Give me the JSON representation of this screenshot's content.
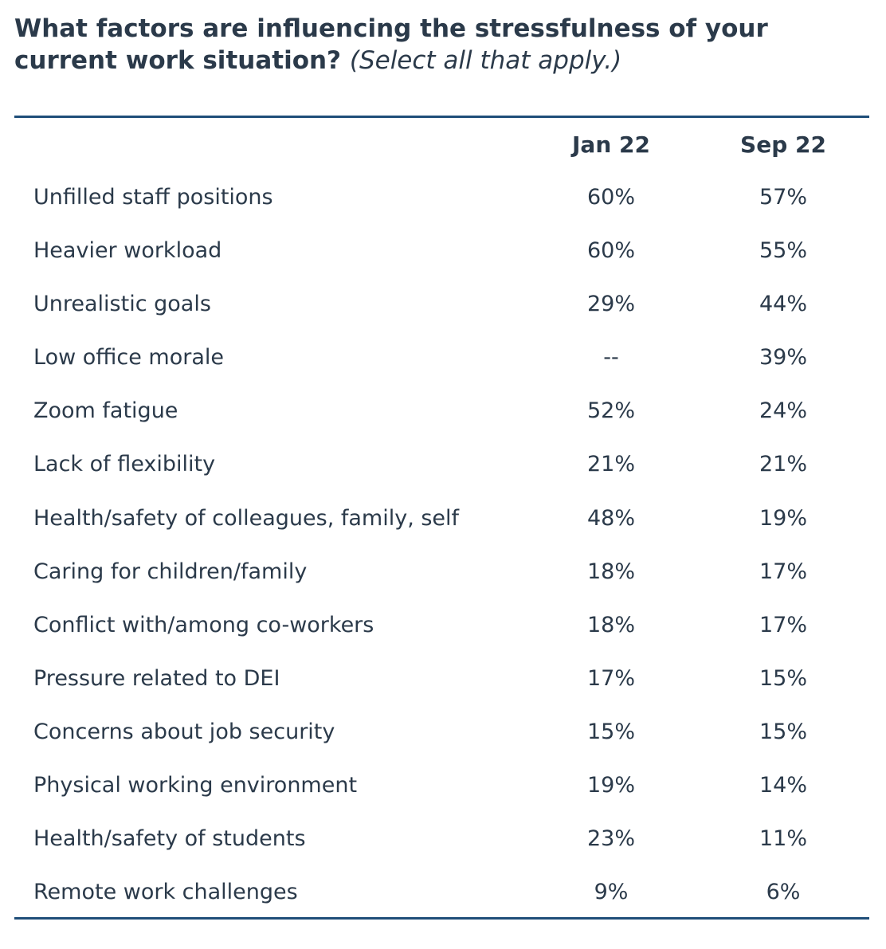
{
  "chart_data": {
    "type": "table",
    "title": "What factors are influencing the stressfulness of your current work situation?",
    "subtitle": "(Select all that apply.)",
    "columns": [
      "Jan 22",
      "Sep 22"
    ],
    "rows": [
      {
        "label": "Unfilled staff positions",
        "values": [
          "60%",
          "57%"
        ]
      },
      {
        "label": "Heavier workload",
        "values": [
          "60%",
          "55%"
        ]
      },
      {
        "label": "Unrealistic goals",
        "values": [
          "29%",
          "44%"
        ]
      },
      {
        "label": "Low office morale",
        "values": [
          "--",
          "39%"
        ]
      },
      {
        "label": "Zoom fatigue",
        "values": [
          "52%",
          "24%"
        ]
      },
      {
        "label": "Lack of flexibility",
        "values": [
          "21%",
          "21%"
        ]
      },
      {
        "label": "Health/safety of colleagues, family, self",
        "values": [
          "48%",
          "19%"
        ]
      },
      {
        "label": "Caring for children/family",
        "values": [
          "18%",
          "17%"
        ]
      },
      {
        "label": "Conflict with/among co-workers",
        "values": [
          "18%",
          "17%"
        ]
      },
      {
        "label": "Pressure related to DEI",
        "values": [
          "17%",
          "15%"
        ]
      },
      {
        "label": "Concerns about job security",
        "values": [
          "15%",
          "15%"
        ]
      },
      {
        "label": "Physical working environment",
        "values": [
          "19%",
          "14%"
        ]
      },
      {
        "label": "Health/safety of students",
        "values": [
          "23%",
          "11%"
        ]
      },
      {
        "label": "Remote work challenges",
        "values": [
          "9%",
          "6%"
        ]
      }
    ]
  },
  "colors": {
    "text": "#2b3a4a",
    "rule": "#1f4e79",
    "background": "#ffffff"
  }
}
